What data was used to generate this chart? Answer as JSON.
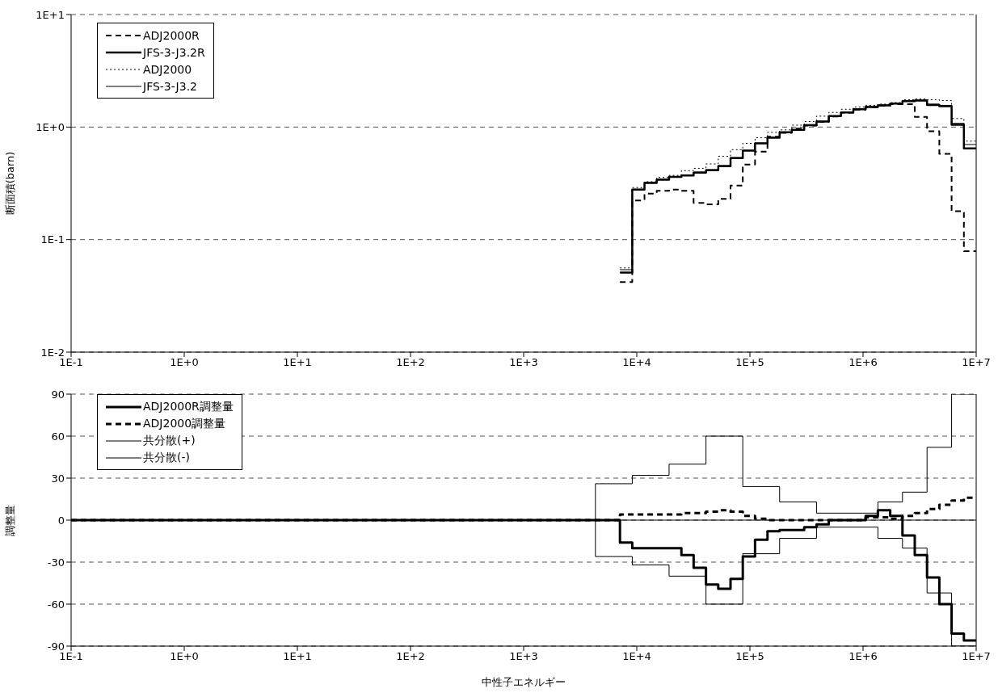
{
  "chart_data": [
    {
      "type": "step",
      "ylabel": "断面積(barn)",
      "log": "xy",
      "grid": "y",
      "legend": "top left",
      "xlim": [
        0.1,
        10000000
      ],
      "ylim": [
        0.01,
        10
      ],
      "xticks": [
        {
          "value": 0.1,
          "label": "1E-1"
        },
        {
          "value": 1,
          "label": "1E+0"
        },
        {
          "value": 10,
          "label": "1E+1"
        },
        {
          "value": 100,
          "label": "1E+2"
        },
        {
          "value": 1000,
          "label": "1E+3"
        },
        {
          "value": 10000,
          "label": "1E+4"
        },
        {
          "value": 100000,
          "label": "1E+5"
        },
        {
          "value": 1000000,
          "label": "1E+6"
        },
        {
          "value": 10000000,
          "label": "1E+7"
        }
      ],
      "yticks": [
        {
          "value": 0.01,
          "label": "1E-2"
        },
        {
          "value": 0.1,
          "label": "1E-1"
        },
        {
          "value": 1,
          "label": "1E+0"
        },
        {
          "value": 10,
          "label": "1E+1"
        }
      ],
      "x": [
        7100,
        9120,
        11700,
        15000,
        19300,
        24800,
        31800,
        40900,
        52500,
        67400,
        86500,
        111000,
        143000,
        183000,
        235000,
        302000,
        388000,
        498000,
        639000,
        821000,
        1054000,
        1353000,
        1738000,
        2231000,
        2865000,
        3679000,
        4724000,
        6065000,
        7788000,
        10000000
      ],
      "series": [
        {
          "name": "ADJ2000R",
          "color": "#000000",
          "line_style": "dashed",
          "values": [
            0.042,
            0.223,
            0.256,
            0.271,
            0.278,
            0.271,
            0.212,
            0.206,
            0.23,
            0.302,
            0.465,
            0.605,
            0.82,
            0.89,
            0.97,
            1.03,
            1.11,
            1.24,
            1.34,
            1.43,
            1.5,
            1.55,
            1.6,
            1.6,
            1.23,
            0.92,
            0.578,
            0.179,
            0.079,
            0.079
          ]
        },
        {
          "name": "JFS-3-J3.2R",
          "color": "#000000",
          "line_style": "solid",
          "values": [
            0.051,
            0.278,
            0.319,
            0.341,
            0.361,
            0.372,
            0.394,
            0.413,
            0.449,
            0.53,
            0.618,
            0.716,
            0.805,
            0.898,
            0.944,
            1.04,
            1.12,
            1.25,
            1.35,
            1.44,
            1.51,
            1.56,
            1.62,
            1.7,
            1.72,
            1.57,
            1.53,
            1.05,
            0.645,
            0.645
          ]
        },
        {
          "name": "ADJ2000",
          "color": "#000000",
          "line_style": "dotted",
          "values": [
            0.056,
            0.29,
            0.327,
            0.357,
            0.372,
            0.41,
            0.43,
            0.47,
            0.55,
            0.63,
            0.716,
            0.805,
            0.898,
            0.944,
            1.04,
            1.12,
            1.25,
            1.35,
            1.44,
            1.51,
            1.56,
            1.6,
            1.65,
            1.75,
            1.78,
            1.75,
            1.72,
            1.19,
            0.75,
            0.75
          ]
        },
        {
          "name": "JFS-3-J3.2",
          "color": "#000000",
          "line_style": "solid",
          "values": [
            0.054,
            0.28,
            0.322,
            0.345,
            0.363,
            0.376,
            0.398,
            0.418,
            0.455,
            0.535,
            0.622,
            0.72,
            0.81,
            0.9,
            0.95,
            1.05,
            1.13,
            1.26,
            1.36,
            1.45,
            1.52,
            1.57,
            1.63,
            1.72,
            1.74,
            1.6,
            1.56,
            1.08,
            0.7,
            0.7
          ]
        }
      ]
    },
    {
      "type": "step",
      "xlabel": "中性子エネルギー",
      "ylabel": "調整量",
      "log": "x",
      "grid": "y",
      "legend": "top left",
      "xlim": [
        0.1,
        10000000
      ],
      "ylim": [
        -90,
        90
      ],
      "xticks": [
        {
          "value": 0.1,
          "label": "1E-1"
        },
        {
          "value": 1,
          "label": "1E+0"
        },
        {
          "value": 10,
          "label": "1E+1"
        },
        {
          "value": 100,
          "label": "1E+2"
        },
        {
          "value": 1000,
          "label": "1E+3"
        },
        {
          "value": 10000,
          "label": "1E+4"
        },
        {
          "value": 100000,
          "label": "1E+5"
        },
        {
          "value": 1000000,
          "label": "1E+6"
        },
        {
          "value": 10000000,
          "label": "1E+7"
        }
      ],
      "yticks": [
        -90,
        -60,
        -30,
        0,
        30,
        60,
        90
      ],
      "ref_lines": [
        {
          "axis": "y",
          "value": 0,
          "label": null
        }
      ],
      "series": [
        {
          "name": "ADJ2000R調整量",
          "color": "#000000",
          "line_style": "solid",
          "x": [
            0.1,
            7100,
            9120,
            24800,
            31800,
            40900,
            52500,
            67400,
            86500,
            111000,
            143000,
            183000,
            302000,
            388000,
            498000,
            1054000,
            1353000,
            1738000,
            2231000,
            2865000,
            3679000,
            4724000,
            6065000,
            7788000,
            10000000
          ],
          "values": [
            0,
            -16,
            -20,
            -25,
            -34,
            -46,
            -49,
            -42,
            -26,
            -14,
            -8,
            -7,
            -5,
            -3,
            0,
            3,
            7,
            3,
            -11,
            -25,
            -41,
            -60,
            -81,
            -86,
            -86
          ]
        },
        {
          "name": "ADJ2000調整量",
          "color": "#000000",
          "line_style": "dashed",
          "x": [
            0.1,
            7100,
            24800,
            31800,
            40900,
            52500,
            67400,
            86500,
            111000,
            143000,
            1054000,
            1738000,
            2231000,
            2865000,
            3679000,
            4724000,
            6065000,
            7788000,
            10000000
          ],
          "values": [
            0,
            4,
            5,
            5,
            6,
            7,
            6,
            3,
            1,
            0,
            2,
            1,
            3,
            5,
            8,
            11,
            14,
            16,
            16
          ]
        },
        {
          "name": "共分散(+)",
          "color": "#000000",
          "line_style": "solid",
          "x": [
            0.1,
            4310,
            9120,
            19300,
            40900,
            86500,
            183000,
            388000,
            1353000,
            2231000,
            3679000,
            6065000,
            10000000
          ],
          "values": [
            0,
            26,
            32,
            40,
            60,
            24,
            13,
            5,
            13,
            20,
            52,
            90,
            90
          ]
        },
        {
          "name": "共分散(-)",
          "color": "#000000",
          "line_style": "solid",
          "x": [
            0.1,
            4310,
            9120,
            19300,
            40900,
            86500,
            183000,
            388000,
            1353000,
            2231000,
            3679000,
            6065000,
            10000000
          ],
          "values": [
            0,
            -26,
            -32,
            -40,
            -60,
            -24,
            -13,
            -5,
            -13,
            -20,
            -52,
            -90,
            -90
          ]
        }
      ]
    }
  ]
}
